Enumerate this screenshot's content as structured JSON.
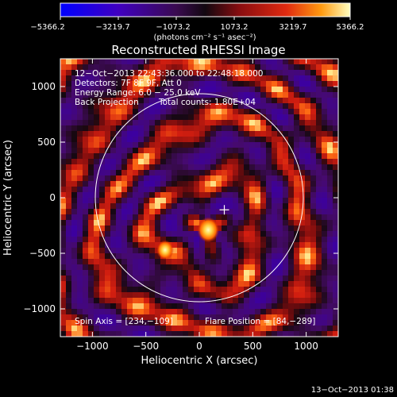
{
  "chart_data": {
    "type": "heatmap",
    "title": "Reconstructed RHESSI Image",
    "colorbar": {
      "ticks": [
        "−5366.2",
        "−3219.7",
        "−1073.2",
        "1073.2",
        "3219.7",
        "5366.2"
      ],
      "range": [
        -5366.2,
        5366.2
      ],
      "unit_label": "(photons cm⁻² s⁻¹ asec⁻²)",
      "colors": [
        "#0000ff",
        "#5a00b0",
        "#1a0a1a",
        "#a01010",
        "#ff6a00",
        "#ffffb0"
      ]
    },
    "xlabel": "Heliocentric X (arcsec)",
    "ylabel": "Heliocentric Y (arcsec)",
    "xlim": [
      -1300,
      1300
    ],
    "ylim": [
      -1250,
      1250
    ],
    "xticks": [
      -1000,
      -500,
      0,
      500,
      1000
    ],
    "yticks": [
      1000,
      500,
      0,
      -500,
      -1000
    ],
    "xtick_labels": [
      "−1000",
      "−500",
      "0",
      "500",
      "1000"
    ],
    "ytick_labels": [
      "1000",
      "500",
      "0",
      "−500",
      "−1000"
    ],
    "annotations": {
      "line1": "12−Oct−2013 22:43:36.000 to 22:48:18.000",
      "line2": "Detectors: 7F 8F 9F, Att 0",
      "line3": "Energy Range: 6.0 − 25.0 keV",
      "line4a": "Back Projection",
      "line4b": "Total counts: 1.80E+04",
      "spin_axis": "Spin Axis = [234,−109]",
      "flare_position": "Flare Position = [84,−289]"
    },
    "solar_limb_radius": 973,
    "spin_axis_xy": [
      234,
      -109
    ],
    "sources": [
      {
        "x": 84,
        "y": -289,
        "peak": 5366.2
      },
      {
        "x": -320,
        "y": -470,
        "peak": 4200
      }
    ],
    "grid": false
  },
  "footer": {
    "timestamp": "13−Oct−2013 01:38"
  }
}
